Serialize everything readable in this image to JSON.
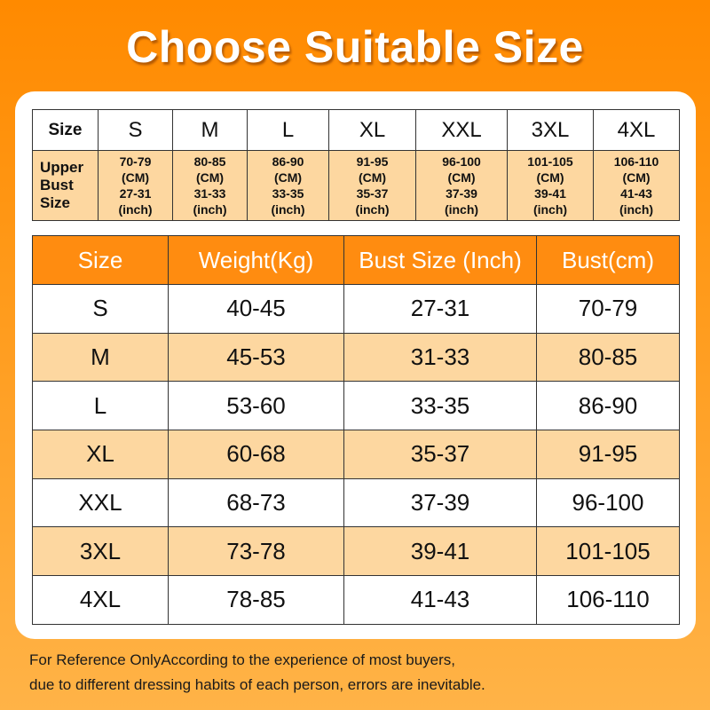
{
  "title": "Choose Suitable Size",
  "compact_table": {
    "size_header": "Size",
    "bust_header": [
      "Upper",
      "Bust",
      "Size"
    ],
    "columns": [
      {
        "size": "S",
        "cm": "70-79",
        "cm_unit": "(CM)",
        "inch": "27-31",
        "inch_unit": "(inch)"
      },
      {
        "size": "M",
        "cm": "80-85",
        "cm_unit": "(CM)",
        "inch": "31-33",
        "inch_unit": "(inch)"
      },
      {
        "size": "L",
        "cm": "86-90",
        "cm_unit": "(CM)",
        "inch": "33-35",
        "inch_unit": "(inch)"
      },
      {
        "size": "XL",
        "cm": "91-95",
        "cm_unit": "(CM)",
        "inch": "35-37",
        "inch_unit": "(inch)"
      },
      {
        "size": "XXL",
        "cm": "96-100",
        "cm_unit": "(CM)",
        "inch": "37-39",
        "inch_unit": "(inch)"
      },
      {
        "size": "3XL",
        "cm": "101-105",
        "cm_unit": "(CM)",
        "inch": "39-41",
        "inch_unit": "(inch)"
      },
      {
        "size": "4XL",
        "cm": "106-110",
        "cm_unit": "(CM)",
        "inch": "41-43",
        "inch_unit": "(inch)"
      }
    ]
  },
  "main_table": {
    "headers": [
      "Size",
      "Weight(Kg)",
      "Bust Size (Inch)",
      "Bust(cm)"
    ],
    "rows": [
      [
        "S",
        "40-45",
        "27-31",
        "70-79"
      ],
      [
        "M",
        "45-53",
        "31-33",
        "80-85"
      ],
      [
        "L",
        "53-60",
        "33-35",
        "86-90"
      ],
      [
        "XL",
        "60-68",
        "35-37",
        "91-95"
      ],
      [
        "XXL",
        "68-73",
        "37-39",
        "96-100"
      ],
      [
        "3XL",
        "73-78",
        "39-41",
        "101-105"
      ],
      [
        "4XL",
        "78-85",
        "41-43",
        "106-110"
      ]
    ]
  },
  "note": {
    "line1": "For Reference OnlyAccording to the experience of most buyers,",
    "line2": "due to different dressing habits of each person, errors are inevitable."
  },
  "colors": {
    "accent": "#ff8c10",
    "row_highlight": "#fdd7a0"
  }
}
